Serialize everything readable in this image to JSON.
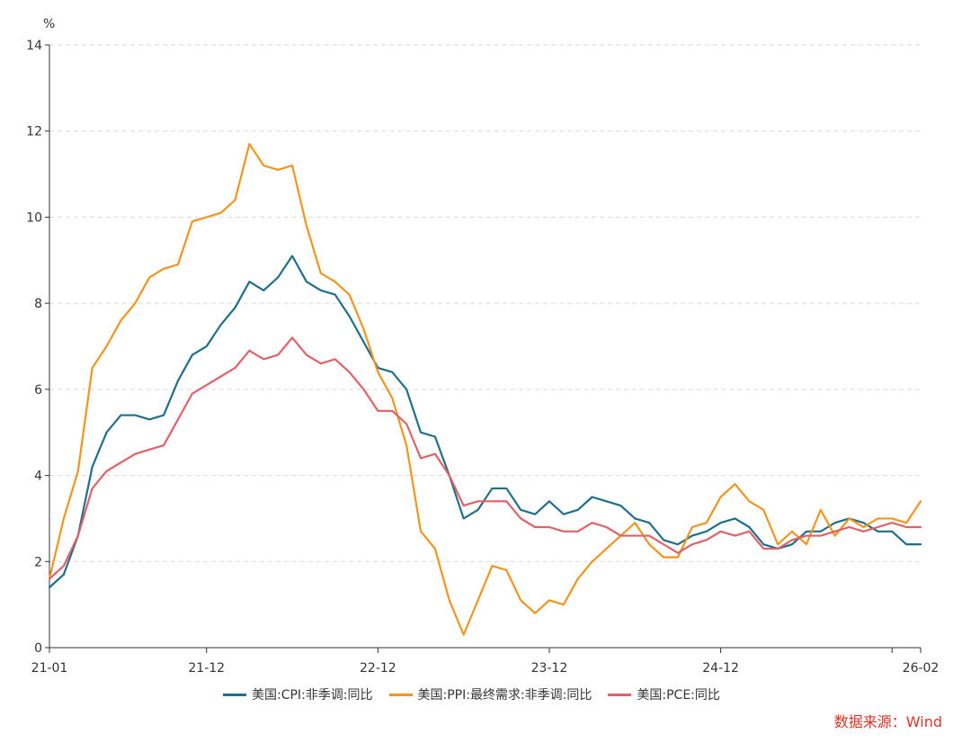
{
  "chart_data": {
    "type": "line",
    "y_unit_label": "%",
    "ylim": [
      0,
      14
    ],
    "y_ticks": [
      0,
      2,
      4,
      6,
      8,
      10,
      12,
      14
    ],
    "x_tick_labels": [
      {
        "label": "21-01",
        "index": 0
      },
      {
        "label": "21-12",
        "index": 11
      },
      {
        "label": "22-12",
        "index": 23
      },
      {
        "label": "23-12",
        "index": 35
      },
      {
        "label": "24-12",
        "index": 47
      },
      {
        "label": "26-02",
        "index": 61
      }
    ],
    "x_extra_ticks": [
      59
    ],
    "x": [
      "21-01",
      "21-02",
      "21-03",
      "21-04",
      "21-05",
      "21-06",
      "21-07",
      "21-08",
      "21-09",
      "21-10",
      "21-11",
      "21-12",
      "22-01",
      "22-02",
      "22-03",
      "22-04",
      "22-05",
      "22-06",
      "22-07",
      "22-08",
      "22-09",
      "22-10",
      "22-11",
      "22-12",
      "23-01",
      "23-02",
      "23-03",
      "23-04",
      "23-05",
      "23-06",
      "23-07",
      "23-08",
      "23-09",
      "23-10",
      "23-11",
      "23-12",
      "24-01",
      "24-02",
      "24-03",
      "24-04",
      "24-05",
      "24-06",
      "24-07",
      "24-08",
      "24-09",
      "24-10",
      "24-11",
      "24-12",
      "25-01",
      "25-02",
      "25-03",
      "25-04",
      "25-05",
      "25-06",
      "25-07",
      "25-08",
      "25-09",
      "25-10",
      "25-11",
      "25-12",
      "26-01",
      "26-02"
    ],
    "grid": true,
    "legend_position": "bottom",
    "series": [
      {
        "name": "美国:CPI:非季调:同比",
        "color": "#1f6f8b",
        "values": [
          1.4,
          1.7,
          2.6,
          4.2,
          5.0,
          5.4,
          5.4,
          5.3,
          5.4,
          6.2,
          6.8,
          7.0,
          7.5,
          7.9,
          8.5,
          8.3,
          8.6,
          9.1,
          8.5,
          8.3,
          8.2,
          7.7,
          7.1,
          6.5,
          6.4,
          6.0,
          5.0,
          4.9,
          4.0,
          3.0,
          3.2,
          3.7,
          3.7,
          3.2,
          3.1,
          3.4,
          3.1,
          3.2,
          3.5,
          3.4,
          3.3,
          3.0,
          2.9,
          2.5,
          2.4,
          2.6,
          2.7,
          2.9,
          3.0,
          2.8,
          2.4,
          2.3,
          2.4,
          2.7,
          2.7,
          2.9,
          3.0,
          2.9,
          2.7,
          2.7,
          2.4,
          2.4
        ]
      },
      {
        "name": "美国:PPI:最终需求:非季调:同比",
        "color": "#f2941d",
        "values": [
          1.6,
          3.0,
          4.1,
          6.5,
          7.0,
          7.6,
          8.0,
          8.6,
          8.8,
          8.9,
          9.9,
          10.0,
          10.1,
          10.4,
          11.7,
          11.2,
          11.1,
          11.2,
          9.8,
          8.7,
          8.5,
          8.2,
          7.4,
          6.4,
          5.8,
          4.7,
          2.7,
          2.3,
          1.1,
          0.3,
          1.1,
          1.9,
          1.8,
          1.1,
          0.8,
          1.1,
          1.0,
          1.6,
          2.0,
          2.3,
          2.6,
          2.9,
          2.4,
          2.1,
          2.1,
          2.8,
          2.9,
          3.5,
          3.8,
          3.4,
          3.2,
          2.4,
          2.7,
          2.4,
          3.2,
          2.6,
          3.0,
          2.8,
          3.0,
          3.0,
          2.9,
          3.4
        ]
      },
      {
        "name": "美国:PCE:同比",
        "color": "#e06168",
        "values": [
          1.6,
          1.9,
          2.6,
          3.7,
          4.1,
          4.3,
          4.5,
          4.6,
          4.7,
          5.3,
          5.9,
          6.1,
          6.3,
          6.5,
          6.9,
          6.7,
          6.8,
          7.2,
          6.8,
          6.6,
          6.7,
          6.4,
          6.0,
          5.5,
          5.5,
          5.2,
          4.4,
          4.5,
          4.0,
          3.3,
          3.4,
          3.4,
          3.4,
          3.0,
          2.8,
          2.8,
          2.7,
          2.7,
          2.9,
          2.8,
          2.6,
          2.6,
          2.6,
          2.4,
          2.2,
          2.4,
          2.5,
          2.7,
          2.6,
          2.7,
          2.3,
          2.3,
          2.5,
          2.6,
          2.6,
          2.7,
          2.8,
          2.7,
          2.8,
          2.9,
          2.8,
          2.8
        ]
      }
    ]
  },
  "legend": {
    "items": [
      {
        "label": "美国:CPI:非季调:同比",
        "color": "#1f6f8b"
      },
      {
        "label": "美国:PPI:最终需求:非季调:同比",
        "color": "#f2941d"
      },
      {
        "label": "美国:PCE:同比",
        "color": "#e06168"
      }
    ]
  },
  "source": {
    "text": "数据来源：Wind"
  }
}
